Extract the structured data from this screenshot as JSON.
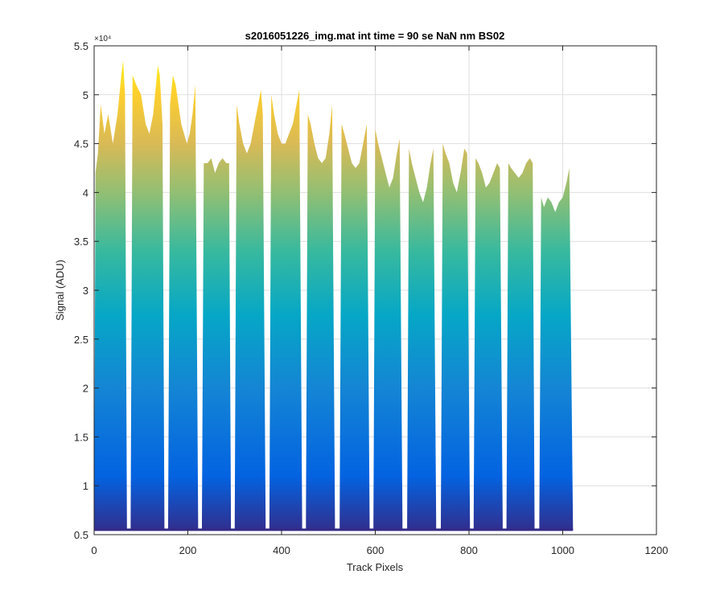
{
  "chart_data": {
    "type": "area",
    "title": "s2016051226_img.mat int time = 90 se  NaN nm BS02",
    "xlabel": "Track Pixels",
    "ylabel": "Signal (ADU)",
    "y_exponent_label": "×10⁴",
    "xlim": [
      0,
      1200
    ],
    "ylim": [
      0.5,
      5.5
    ],
    "y_scale_factor": 10000,
    "x_ticks": [
      0,
      200,
      400,
      600,
      800,
      1000,
      1200
    ],
    "x_tick_labels": [
      "0",
      "200",
      "400",
      "600",
      "800",
      "1000",
      "1200"
    ],
    "y_ticks": [
      0.5,
      1,
      1.5,
      2,
      2.5,
      3,
      3.5,
      4,
      4.5,
      5,
      5.5
    ],
    "y_tick_labels": [
      "0.5",
      "1",
      "1.5",
      "2",
      "2.5",
      "3",
      "3.5",
      "4",
      "4.5",
      "5",
      "5.5"
    ],
    "grid": true,
    "colormap": [
      "#352a87",
      "#0363e1",
      "#1485d4",
      "#06a7c6",
      "#38b99e",
      "#92bf73",
      "#d9ba56",
      "#fcce2e",
      "#f9fb0e"
    ],
    "baseline": 0.55,
    "segments": [
      {
        "x": [
          0,
          3,
          8,
          14,
          22,
          30,
          40,
          50,
          58,
          62,
          66,
          70
        ],
        "y": [
          0.55,
          4.2,
          4.4,
          4.9,
          4.6,
          4.8,
          4.5,
          4.8,
          5.2,
          5.35,
          5.0,
          0.6
        ]
      },
      {
        "x": [
          78,
          82,
          90,
          100,
          110,
          118,
          126,
          132,
          136,
          140,
          146,
          150
        ],
        "y": [
          0.62,
          5.2,
          5.1,
          5.0,
          4.7,
          4.6,
          4.8,
          5.1,
          5.3,
          5.2,
          4.7,
          0.62
        ]
      },
      {
        "x": [
          158,
          162,
          168,
          174,
          180,
          186,
          192,
          198,
          204,
          210,
          216,
          222
        ],
        "y": [
          0.62,
          4.9,
          5.2,
          5.1,
          4.9,
          4.7,
          4.6,
          4.5,
          4.6,
          4.8,
          5.1,
          0.62
        ]
      },
      {
        "x": [
          230,
          234,
          242,
          250,
          258,
          266,
          274,
          282,
          288,
          292
        ],
        "y": [
          0.62,
          4.3,
          4.3,
          4.35,
          4.2,
          4.3,
          4.35,
          4.3,
          4.3,
          0.62
        ]
      },
      {
        "x": [
          300,
          304,
          310,
          318,
          326,
          334,
          342,
          350,
          356,
          360,
          366
        ],
        "y": [
          0.62,
          4.9,
          4.7,
          4.5,
          4.4,
          4.5,
          4.7,
          4.9,
          5.05,
          4.8,
          0.62
        ]
      },
      {
        "x": [
          374,
          378,
          384,
          392,
          400,
          408,
          416,
          424,
          432,
          438,
          444
        ],
        "y": [
          0.62,
          5.0,
          4.8,
          4.6,
          4.5,
          4.5,
          4.6,
          4.7,
          4.9,
          5.05,
          0.62
        ]
      },
      {
        "x": [
          452,
          456,
          462,
          470,
          478,
          486,
          494,
          502,
          508,
          514
        ],
        "y": [
          0.62,
          4.8,
          4.7,
          4.5,
          4.35,
          4.3,
          4.35,
          4.6,
          4.9,
          0.62
        ]
      },
      {
        "x": [
          524,
          528,
          534,
          542,
          550,
          558,
          566,
          574,
          582,
          588
        ],
        "y": [
          0.62,
          4.7,
          4.6,
          4.45,
          4.3,
          4.25,
          4.3,
          4.5,
          4.7,
          0.62
        ]
      },
      {
        "x": [
          596,
          600,
          606,
          614,
          622,
          630,
          638,
          646,
          652,
          658
        ],
        "y": [
          0.62,
          4.65,
          4.5,
          4.35,
          4.2,
          4.05,
          4.15,
          4.4,
          4.55,
          0.62
        ]
      },
      {
        "x": [
          668,
          672,
          678,
          686,
          694,
          702,
          710,
          718,
          724,
          730
        ],
        "y": [
          0.62,
          4.45,
          4.3,
          4.15,
          4.0,
          3.9,
          4.05,
          4.3,
          4.45,
          0.62
        ]
      },
      {
        "x": [
          740,
          744,
          750,
          758,
          766,
          774,
          782,
          790,
          796,
          802
        ],
        "y": [
          0.62,
          4.5,
          4.4,
          4.3,
          4.1,
          4.0,
          4.2,
          4.45,
          4.4,
          0.62
        ]
      },
      {
        "x": [
          810,
          814,
          820,
          828,
          836,
          844,
          852,
          860,
          866,
          872
        ],
        "y": [
          0.62,
          4.35,
          4.3,
          4.2,
          4.05,
          4.1,
          4.2,
          4.3,
          4.25,
          0.62
        ]
      },
      {
        "x": [
          880,
          884,
          890,
          898,
          906,
          914,
          922,
          930,
          936,
          940
        ],
        "y": [
          0.62,
          4.3,
          4.25,
          4.2,
          4.15,
          4.2,
          4.3,
          4.35,
          4.3,
          0.62
        ]
      },
      {
        "x": [
          950,
          954,
          960,
          968,
          976,
          984,
          992,
          1000,
          1008,
          1014,
          1022
        ],
        "y": [
          0.62,
          3.95,
          3.85,
          3.95,
          3.9,
          3.8,
          3.9,
          3.95,
          4.1,
          4.25,
          0.55
        ]
      }
    ]
  }
}
